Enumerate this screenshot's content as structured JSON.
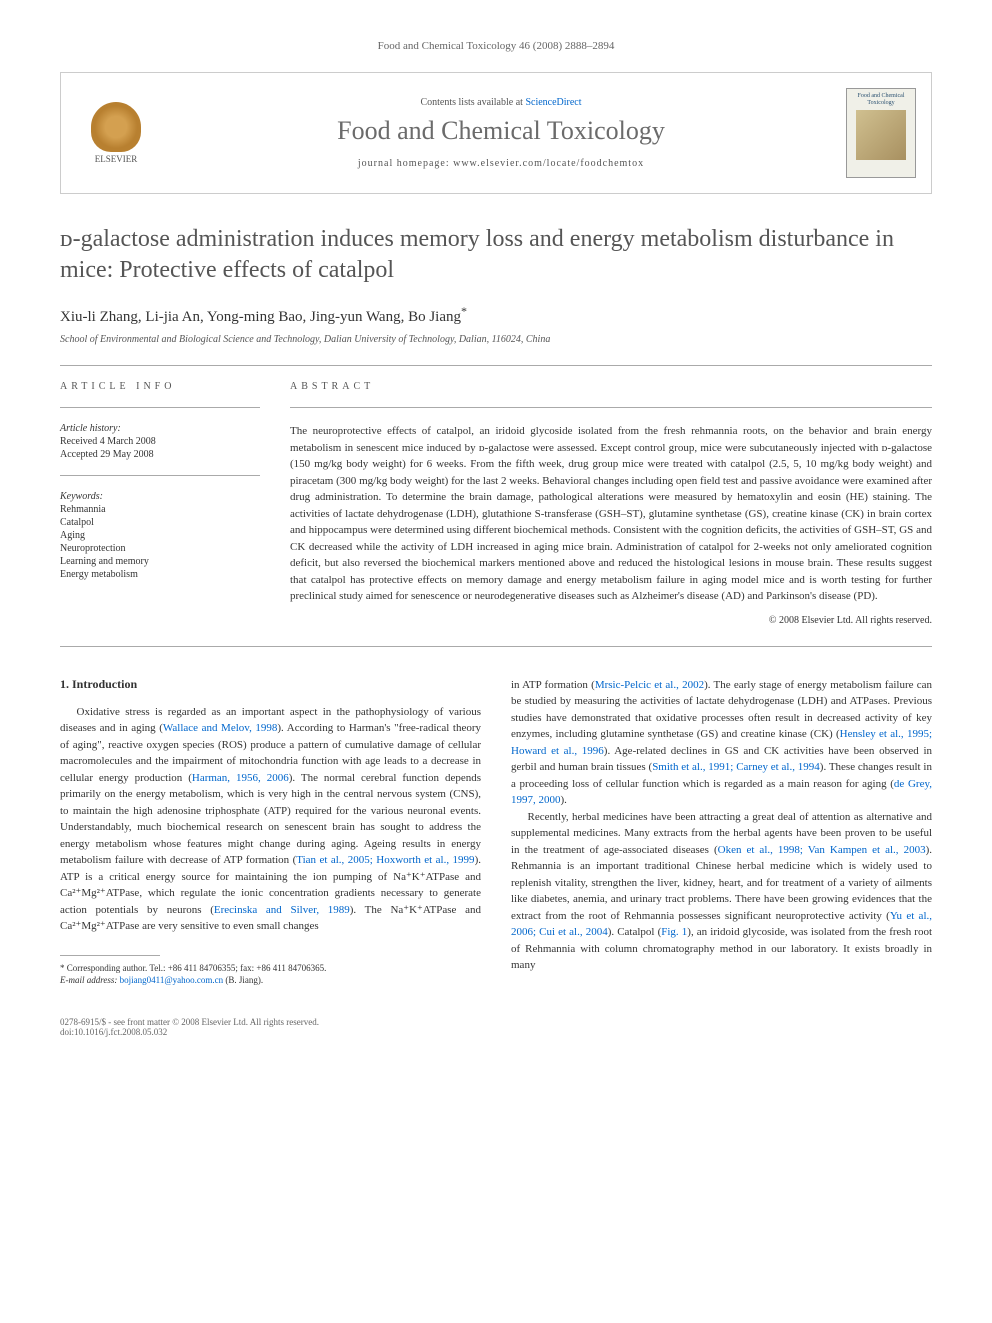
{
  "header_bar": "Food and Chemical Toxicology 46 (2008) 2888–2894",
  "journal_header": {
    "elsevier_label": "ELSEVIER",
    "contents_prefix": "Contents lists available at ",
    "contents_link": "ScienceDirect",
    "journal_name": "Food and Chemical Toxicology",
    "homepage_prefix": "journal homepage: ",
    "homepage_url": "www.elsevier.com/locate/foodchemtox",
    "cover_title": "Food and Chemical Toxicology"
  },
  "article": {
    "title": "ᴅ-galactose administration induces memory loss and energy metabolism disturbance in mice: Protective effects of catalpol",
    "authors": "Xiu-li Zhang, Li-jia An, Yong-ming Bao, Jing-yun Wang, Bo Jiang",
    "corresponding_mark": "*",
    "affiliation": "School of Environmental and Biological Science and Technology, Dalian University of Technology, Dalian, 116024, China"
  },
  "article_info": {
    "heading": "ARTICLE INFO",
    "history_label": "Article history:",
    "received": "Received 4 March 2008",
    "accepted": "Accepted 29 May 2008",
    "keywords_label": "Keywords:",
    "keywords": [
      "Rehmannia",
      "Catalpol",
      "Aging",
      "Neuroprotection",
      "Learning and memory",
      "Energy metabolism"
    ]
  },
  "abstract": {
    "heading": "ABSTRACT",
    "text": "The neuroprotective effects of catalpol, an iridoid glycoside isolated from the fresh rehmannia roots, on the behavior and brain energy metabolism in senescent mice induced by ᴅ-galactose were assessed. Except control group, mice were subcutaneously injected with ᴅ-galactose (150 mg/kg body weight) for 6 weeks. From the fifth week, drug group mice were treated with catalpol (2.5, 5, 10 mg/kg body weight) and piracetam (300 mg/kg body weight) for the last 2 weeks. Behavioral changes including open field test and passive avoidance were examined after drug administration. To determine the brain damage, pathological alterations were measured by hematoxylin and eosin (HE) staining. The activities of lactate dehydrogenase (LDH), glutathione S-transferase (GSH–ST), glutamine synthetase (GS), creatine kinase (CK) in brain cortex and hippocampus were determined using different biochemical methods. Consistent with the cognition deficits, the activities of GSH–ST, GS and CK decreased while the activity of LDH increased in aging mice brain. Administration of catalpol for 2-weeks not only ameliorated cognition deficit, but also reversed the biochemical markers mentioned above and reduced the histological lesions in mouse brain. These results suggest that catalpol has protective effects on memory damage and energy metabolism failure in aging model mice and is worth testing for further preclinical study aimed for senescence or neurodegenerative diseases such as Alzheimer's disease (AD) and Parkinson's disease (PD).",
    "copyright": "© 2008 Elsevier Ltd. All rights reserved."
  },
  "body": {
    "section_heading": "1. Introduction",
    "col1_p1a": "Oxidative stress is regarded as an important aspect in the pathophysiology of various diseases and in aging (",
    "col1_ref1": "Wallace and Melov, 1998",
    "col1_p1b": "). According to Harman's \"free-radical theory of aging\", reactive oxygen species (ROS) produce a pattern of cumulative damage of cellular macromolecules and the impairment of mitochondria function with age leads to a decrease in cellular energy production (",
    "col1_ref2": "Harman, 1956, 2006",
    "col1_p1c": "). The normal cerebral function depends primarily on the energy metabolism, which is very high in the central nervous system (CNS), to maintain the high adenosine triphosphate (ATP) required for the various neuronal events. Understandably, much biochemical research on senescent brain has sought to address the energy metabolism whose features might change during aging. Ageing results in energy metabolism failure with decrease of ATP formation (",
    "col1_ref3": "Tian et al., 2005; Hoxworth et al., 1999",
    "col1_p1d": "). ATP is a critical energy source for maintaining the ion pumping of Na⁺K⁺ATPase and Ca²⁺Mg²⁺ATPase, which regulate the ionic concentration gradients necessary to generate action potentials by neurons (",
    "col1_ref4": "Erecinska and Silver, 1989",
    "col1_p1e": "). The Na⁺K⁺ATPase and Ca²⁺Mg²⁺ATPase are very sensitive to even small changes",
    "col2_p1a": "in ATP formation (",
    "col2_ref1": "Mrsic-Pelcic et al., 2002",
    "col2_p1b": "). The early stage of energy metabolism failure can be studied by measuring the activities of lactate dehydrogenase (LDH) and ATPases. Previous studies have demonstrated that oxidative processes often result in decreased activity of key enzymes, including glutamine synthetase (GS) and creatine kinase (CK) (",
    "col2_ref2": "Hensley et al., 1995; Howard et al., 1996",
    "col2_p1c": "). Age-related declines in GS and CK activities have been observed in gerbil and human brain tissues (",
    "col2_ref3": "Smith et al., 1991; Carney et al., 1994",
    "col2_p1d": "). These changes result in a proceeding loss of cellular function which is regarded as a main reason for aging (",
    "col2_ref4": "de Grey, 1997, 2000",
    "col2_p1e": ").",
    "col2_p2a": "Recently, herbal medicines have been attracting a great deal of attention as alternative and supplemental medicines. Many extracts from the herbal agents have been proven to be useful in the treatment of age-associated diseases (",
    "col2_ref5": "Oken et al., 1998; Van Kampen et al., 2003",
    "col2_p2b": "). Rehmannia is an important traditional Chinese herbal medicine which is widely used to replenish vitality, strengthen the liver, kidney, heart, and for treatment of a variety of ailments like diabetes, anemia, and urinary tract problems. There have been growing evidences that the extract from the root of Rehmannia possesses significant neuroprotective activity (",
    "col2_ref6": "Yu et al., 2006; Cui et al., 2004",
    "col2_p2c": "). Catalpol (",
    "col2_ref7": "Fig. 1",
    "col2_p2d": "), an iridoid glycoside, was isolated from the fresh root of Rehmannia with column chromatography method in our laboratory. It exists broadly in many"
  },
  "footnote": {
    "line1": "* Corresponding author. Tel.: +86 411 84706355; fax: +86 411 84706365.",
    "email_label": "E-mail address: ",
    "email": "bojiang0411@yahoo.com.cn",
    "email_suffix": " (B. Jiang)."
  },
  "footer": {
    "line1": "0278-6915/$ - see front matter © 2008 Elsevier Ltd. All rights reserved.",
    "line2": "doi:10.1016/j.fct.2008.05.032"
  }
}
